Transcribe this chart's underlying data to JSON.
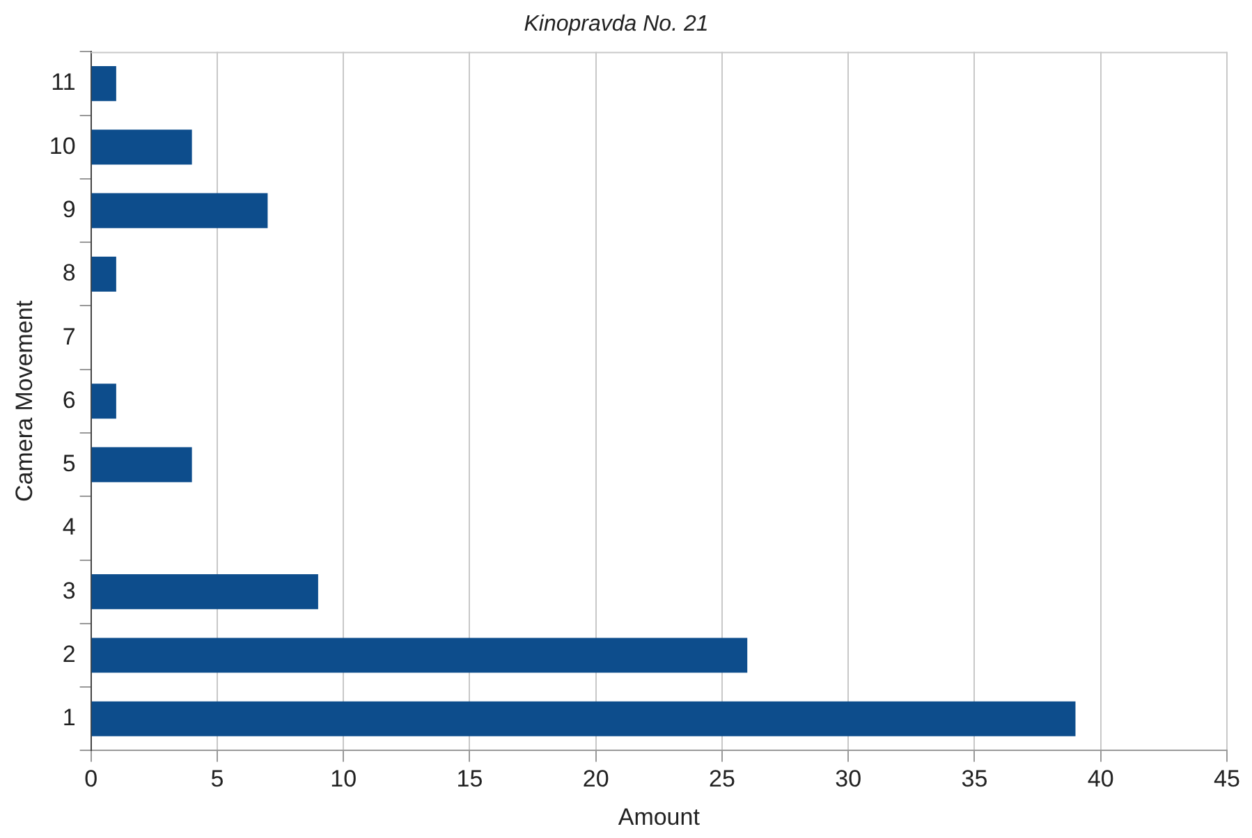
{
  "chart_data": {
    "type": "bar",
    "orientation": "horizontal",
    "title": "Kinopravda No. 21",
    "xlabel": "Amount",
    "ylabel": "Camera Movement",
    "categories": [
      "11",
      "10",
      "9",
      "8",
      "7",
      "6",
      "5",
      "4",
      "3",
      "2",
      "1"
    ],
    "values": [
      1,
      4,
      7,
      1,
      0,
      1,
      4,
      0,
      9,
      26,
      39
    ],
    "color": "#0d4d8c",
    "xlim": [
      0,
      45
    ],
    "xticks": [
      0,
      5,
      10,
      15,
      20,
      25,
      30,
      35,
      40,
      45
    ],
    "grid": "x",
    "legend": false
  }
}
